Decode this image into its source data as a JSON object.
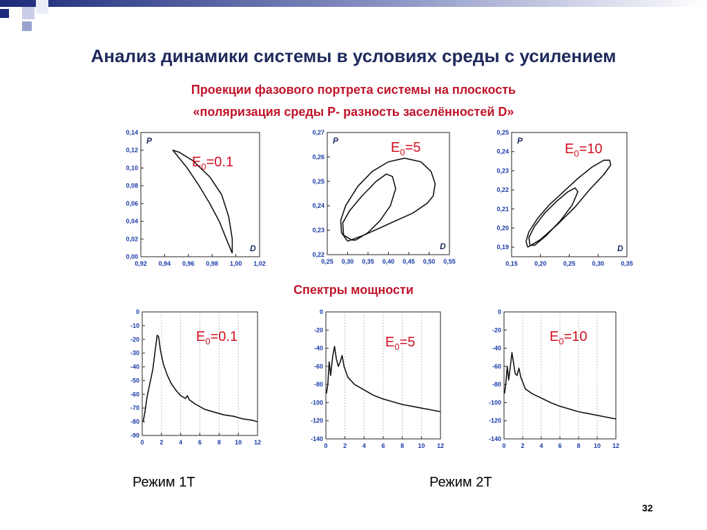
{
  "slide": {
    "title": "Анализ динамики системы в условиях среды с усилением",
    "subtitle_line1": "Проекции фазового портрета системы на плоскость",
    "subtitle_line2": "«поляризация среды P- разность заселённостей D»",
    "spectra_title": "Спектры мощности",
    "mode_1": "Режим 1T",
    "mode_2": "Режим 2T",
    "page_number": "32"
  },
  "colors": {
    "title": "#1f2a5c",
    "accent_red": "#c0142a",
    "label_red": "#d01020",
    "axis_blue": "#1a3aa8",
    "deco_navy": "#1c2a7a"
  },
  "chart_data": [
    {
      "id": "phase1",
      "type": "line",
      "param": "E0=0.1",
      "xlabel": "D",
      "ylabel": "P",
      "xlim": [
        0.92,
        1.02
      ],
      "ylim": [
        0.0,
        0.14
      ],
      "xticks": [
        "0,92",
        "0,94",
        "0,96",
        "0,98",
        "1,00",
        "1,02"
      ],
      "yticks": [
        "0,00",
        "0,02",
        "0,04",
        "0,06",
        "0,08",
        "0,10",
        "0,12",
        "0,14"
      ],
      "series": [
        {
          "points": [
            [
              0.997,
              0.004
            ],
            [
              0.992,
              0.02
            ],
            [
              0.986,
              0.04
            ],
            [
              0.978,
              0.06
            ],
            [
              0.969,
              0.08
            ],
            [
              0.959,
              0.1
            ],
            [
              0.95,
              0.115
            ],
            [
              0.947,
              0.12
            ],
            [
              0.952,
              0.118
            ],
            [
              0.964,
              0.108
            ],
            [
              0.978,
              0.09
            ],
            [
              0.988,
              0.07
            ],
            [
              0.994,
              0.045
            ],
            [
              0.997,
              0.02
            ],
            [
              0.997,
              0.004
            ]
          ]
        }
      ]
    },
    {
      "id": "phase2",
      "type": "line",
      "param": "E0=5",
      "xlabel": "D",
      "ylabel": "P",
      "xlim": [
        0.25,
        0.55
      ],
      "ylim": [
        0.22,
        0.27
      ],
      "xticks": [
        "0,25",
        "0,30",
        "0,35",
        "0,40",
        "0,45",
        "0,50",
        "0,55"
      ],
      "yticks": [
        "0,22",
        "0,23",
        "0,24",
        "0,25",
        "0,26",
        "0,27"
      ],
      "series": [
        {
          "name": "outer",
          "points": [
            [
              0.3,
              0.2255
            ],
            [
              0.285,
              0.229
            ],
            [
              0.283,
              0.234
            ],
            [
              0.295,
              0.24
            ],
            [
              0.325,
              0.248
            ],
            [
              0.36,
              0.254
            ],
            [
              0.4,
              0.258
            ],
            [
              0.44,
              0.2595
            ],
            [
              0.48,
              0.258
            ],
            [
              0.505,
              0.254
            ],
            [
              0.515,
              0.249
            ],
            [
              0.51,
              0.244
            ],
            [
              0.495,
              0.241
            ],
            [
              0.46,
              0.237
            ],
            [
              0.42,
              0.234
            ],
            [
              0.38,
              0.231
            ],
            [
              0.34,
              0.228
            ],
            [
              0.3,
              0.2255
            ]
          ]
        },
        {
          "name": "inner",
          "points": [
            [
              0.31,
              0.226
            ],
            [
              0.29,
              0.228
            ],
            [
              0.288,
              0.233
            ],
            [
              0.305,
              0.238
            ],
            [
              0.335,
              0.244
            ],
            [
              0.37,
              0.25
            ],
            [
              0.395,
              0.253
            ],
            [
              0.41,
              0.252
            ],
            [
              0.418,
              0.247
            ],
            [
              0.405,
              0.24
            ],
            [
              0.38,
              0.234
            ],
            [
              0.35,
              0.229
            ],
            [
              0.32,
              0.226
            ],
            [
              0.31,
              0.226
            ]
          ]
        }
      ]
    },
    {
      "id": "phase3",
      "type": "line",
      "param": "E0=10",
      "xlabel": "D",
      "ylabel": "P",
      "xlim": [
        0.15,
        0.35
      ],
      "ylim": [
        0.185,
        0.25
      ],
      "xticks": [
        "0,15",
        "0,20",
        "0,25",
        "0,30",
        "0,35"
      ],
      "yticks": [
        "0,19",
        "0,20",
        "0,21",
        "0,22",
        "0,23",
        "0,24",
        "0,25"
      ],
      "series": [
        {
          "name": "outer",
          "points": [
            [
              0.178,
              0.19
            ],
            [
              0.175,
              0.193
            ],
            [
              0.18,
              0.198
            ],
            [
              0.195,
              0.205
            ],
            [
              0.215,
              0.212
            ],
            [
              0.24,
              0.219
            ],
            [
              0.265,
              0.226
            ],
            [
              0.29,
              0.232
            ],
            [
              0.31,
              0.2355
            ],
            [
              0.32,
              0.2355
            ],
            [
              0.322,
              0.233
            ],
            [
              0.31,
              0.228
            ],
            [
              0.285,
              0.22
            ],
            [
              0.26,
              0.211
            ],
            [
              0.23,
              0.202
            ],
            [
              0.2,
              0.194
            ],
            [
              0.178,
              0.19
            ]
          ]
        },
        {
          "name": "inner",
          "points": [
            [
              0.182,
              0.191
            ],
            [
              0.18,
              0.195
            ],
            [
              0.19,
              0.201
            ],
            [
              0.208,
              0.208
            ],
            [
              0.228,
              0.214
            ],
            [
              0.248,
              0.219
            ],
            [
              0.26,
              0.221
            ],
            [
              0.265,
              0.219
            ],
            [
              0.255,
              0.212
            ],
            [
              0.235,
              0.204
            ],
            [
              0.21,
              0.196
            ],
            [
              0.19,
              0.191
            ],
            [
              0.182,
              0.191
            ]
          ]
        }
      ]
    },
    {
      "id": "spec1",
      "type": "line",
      "param": "E0=0.1",
      "xlim": [
        0,
        12
      ],
      "ylim": [
        -90,
        0
      ],
      "xticks": [
        "0",
        "2",
        "4",
        "6",
        "8",
        "10",
        "12"
      ],
      "yticks": [
        "0",
        "-10",
        "-20",
        "-30",
        "-40",
        "-50",
        "-60",
        "-70",
        "-80",
        "-90"
      ],
      "series": [
        {
          "points": [
            [
              0.1,
              -80
            ],
            [
              0.3,
              -72
            ],
            [
              0.5,
              -62
            ],
            [
              0.8,
              -52
            ],
            [
              1.1,
              -42
            ],
            [
              1.35,
              -28
            ],
            [
              1.55,
              -17
            ],
            [
              1.7,
              -18
            ],
            [
              1.9,
              -28
            ],
            [
              2.2,
              -38
            ],
            [
              2.6,
              -46
            ],
            [
              3.0,
              -52
            ],
            [
              3.5,
              -57
            ],
            [
              4.0,
              -61
            ],
            [
              4.5,
              -63
            ],
            [
              4.7,
              -61
            ],
            [
              4.9,
              -64
            ],
            [
              5.5,
              -67
            ],
            [
              6.5,
              -71
            ],
            [
              7.5,
              -73
            ],
            [
              8.5,
              -75
            ],
            [
              9.5,
              -76
            ],
            [
              10.5,
              -78
            ],
            [
              11.5,
              -79
            ],
            [
              12,
              -80
            ]
          ]
        }
      ]
    },
    {
      "id": "spec2",
      "type": "line",
      "param": "E0=5",
      "xlim": [
        0,
        12
      ],
      "ylim": [
        -140,
        0
      ],
      "xticks": [
        "0",
        "2",
        "4",
        "6",
        "8",
        "10",
        "12"
      ],
      "yticks": [
        "0",
        "-20",
        "-40",
        "-60",
        "-80",
        "-100",
        "-120",
        "-140"
      ],
      "series": [
        {
          "points": [
            [
              0.05,
              -90
            ],
            [
              0.2,
              -80
            ],
            [
              0.35,
              -55
            ],
            [
              0.5,
              -70
            ],
            [
              0.7,
              -50
            ],
            [
              0.9,
              -38
            ],
            [
              1.1,
              -52
            ],
            [
              1.3,
              -60
            ],
            [
              1.5,
              -55
            ],
            [
              1.7,
              -48
            ],
            [
              1.9,
              -60
            ],
            [
              2.3,
              -72
            ],
            [
              3.0,
              -80
            ],
            [
              4.0,
              -86
            ],
            [
              5.0,
              -92
            ],
            [
              6.0,
              -96
            ],
            [
              7.0,
              -99
            ],
            [
              8.0,
              -102
            ],
            [
              9.0,
              -104
            ],
            [
              10.0,
              -106
            ],
            [
              11.0,
              -108
            ],
            [
              12,
              -110
            ]
          ]
        }
      ]
    },
    {
      "id": "spec3",
      "type": "line",
      "param": "E0=10",
      "xlim": [
        0,
        12
      ],
      "ylim": [
        -140,
        0
      ],
      "xticks": [
        "0",
        "2",
        "4",
        "6",
        "8",
        "10",
        "12"
      ],
      "yticks": [
        "0",
        "-20",
        "-40",
        "-60",
        "-80",
        "-100",
        "-120",
        "-140"
      ],
      "series": [
        {
          "points": [
            [
              0.05,
              -90
            ],
            [
              0.2,
              -78
            ],
            [
              0.35,
              -60
            ],
            [
              0.5,
              -75
            ],
            [
              0.7,
              -58
            ],
            [
              0.85,
              -45
            ],
            [
              1.0,
              -55
            ],
            [
              1.2,
              -68
            ],
            [
              1.4,
              -70
            ],
            [
              1.6,
              -62
            ],
            [
              1.8,
              -72
            ],
            [
              2.3,
              -85
            ],
            [
              3.0,
              -90
            ],
            [
              4.0,
              -95
            ],
            [
              5.0,
              -100
            ],
            [
              6.0,
              -104
            ],
            [
              7.0,
              -107
            ],
            [
              8.0,
              -110
            ],
            [
              9.0,
              -112
            ],
            [
              10.0,
              -114
            ],
            [
              11.0,
              -116
            ],
            [
              12,
              -118
            ]
          ]
        }
      ]
    }
  ]
}
